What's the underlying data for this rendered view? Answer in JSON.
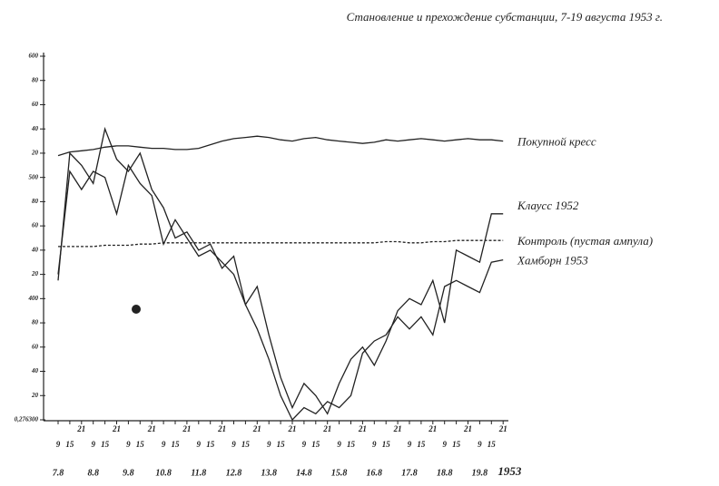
{
  "chart_data": {
    "type": "line",
    "title": "Становление и прехождение субстанции, 7-19 августа 1953 г.",
    "categories": [
      "9",
      "15",
      "21",
      "9",
      "15",
      "21",
      "9",
      "15",
      "21",
      "9",
      "15",
      "21",
      "9",
      "15",
      "21",
      "9",
      "15",
      "21",
      "9",
      "15",
      "21",
      "9",
      "15",
      "21",
      "9",
      "15",
      "21",
      "9",
      "15",
      "21",
      "9",
      "15",
      "21",
      "9",
      "15",
      "21",
      "9",
      "15",
      "21"
    ],
    "dates": [
      "7.8",
      "8.8",
      "9.8",
      "10.8",
      "11.8",
      "12.8",
      "13.8",
      "14.8",
      "15.8",
      "16.8",
      "17.8",
      "18.8",
      "19.8"
    ],
    "year": "1953",
    "ylim": [
      300,
      600
    ],
    "yticks": [
      {
        "value": 300,
        "label": "0,276300"
      },
      {
        "value": 320,
        "label": "20"
      },
      {
        "value": 340,
        "label": "40"
      },
      {
        "value": 360,
        "label": "60"
      },
      {
        "value": 380,
        "label": "80"
      },
      400,
      {
        "value": 420,
        "label": "20"
      },
      {
        "value": 440,
        "label": "40"
      },
      {
        "value": 460,
        "label": "60"
      },
      {
        "value": 480,
        "label": "80"
      },
      500,
      {
        "value": 520,
        "label": "20"
      },
      {
        "value": 540,
        "label": "40"
      },
      {
        "value": 560,
        "label": "60"
      },
      {
        "value": 580,
        "label": "80"
      },
      600
    ],
    "series": [
      {
        "name": "Покупной кресс",
        "color": "#222",
        "style": "solid",
        "values": [
          518,
          521,
          522,
          523,
          525,
          526,
          526,
          525,
          524,
          524,
          523,
          523,
          524,
          527,
          530,
          532,
          533,
          534,
          533,
          531,
          530,
          532,
          533,
          531,
          530,
          529,
          528,
          529,
          531,
          530,
          531,
          532,
          531,
          530,
          531,
          532,
          531,
          531,
          530
        ]
      },
      {
        "name": "Клаусс 1952",
        "color": "#222",
        "style": "solid",
        "values": [
          415,
          520,
          510,
          495,
          540,
          515,
          505,
          520,
          490,
          475,
          450,
          455,
          440,
          445,
          425,
          435,
          395,
          410,
          370,
          335,
          310,
          330,
          320,
          305,
          330,
          350,
          360,
          345,
          365,
          390,
          400,
          395,
          415,
          380,
          440,
          435,
          430,
          470,
          470
        ]
      },
      {
        "name": "Контроль (пустая ампула)",
        "color": "#222",
        "style": "dashed",
        "values": [
          443,
          443,
          443,
          443,
          444,
          444,
          444,
          445,
          445,
          446,
          446,
          446,
          446,
          446,
          446,
          446,
          446,
          446,
          446,
          446,
          446,
          446,
          446,
          446,
          446,
          446,
          446,
          446,
          447,
          447,
          446,
          446,
          447,
          447,
          448,
          448,
          448,
          448,
          448
        ]
      },
      {
        "name": "Хамборн 1953",
        "color": "#222",
        "style": "solid",
        "values": [
          420,
          505,
          490,
          505,
          500,
          470,
          510,
          495,
          485,
          445,
          465,
          450,
          435,
          440,
          430,
          420,
          395,
          375,
          350,
          320,
          300,
          310,
          305,
          315,
          310,
          320,
          355,
          365,
          370,
          385,
          375,
          385,
          370,
          410,
          415,
          410,
          405,
          430,
          432
        ]
      }
    ]
  }
}
